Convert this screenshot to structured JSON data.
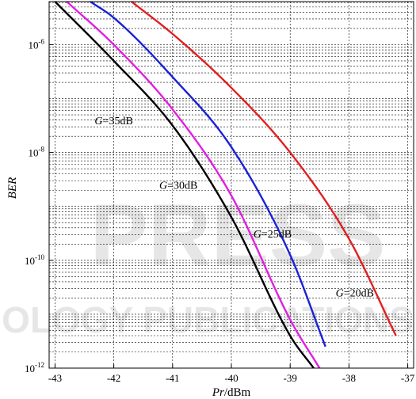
{
  "chart_data": {
    "type": "line",
    "xlabel": {
      "italic": "Pr",
      "rest": "/dBm"
    },
    "ylabel": "BER",
    "xlim": [
      -43.1,
      -36.9
    ],
    "ylim_log10": [
      -12,
      -5.2
    ],
    "yscale": "log",
    "x_ticks": [
      -43,
      -42,
      -41,
      -40,
      -39,
      -38,
      -37
    ],
    "x_tick_labels": [
      "-43",
      "-42",
      "-41",
      "-40",
      "-39",
      "-38",
      "-37"
    ],
    "y_ticks": [
      {
        "base": "10",
        "exp": "-6",
        "log": -6
      },
      {
        "base": "10",
        "exp": "-8",
        "log": -8
      },
      {
        "base": "10",
        "exp": "-10",
        "log": -10
      },
      {
        "base": "10",
        "exp": "-12",
        "log": -12
      }
    ],
    "grid": true,
    "series": [
      {
        "color": "#e02020",
        "x": [
          -41.7,
          -41.0,
          -40.0,
          -39.0,
          -38.0,
          -37.2
        ],
        "log10_ber": [
          -5.2,
          -5.8,
          -6.8,
          -8.0,
          -9.6,
          -11.4
        ]
      },
      {
        "color": "#1a22d8",
        "x": [
          -42.4,
          -42.0,
          -41.0,
          -40.0,
          -39.0,
          -38.4
        ],
        "log10_ber": [
          -5.2,
          -5.5,
          -6.6,
          -7.9,
          -9.9,
          -11.6
        ]
      },
      {
        "color": "#e020e0",
        "x": [
          -42.8,
          -42.0,
          -41.0,
          -40.0,
          -39.0,
          -38.5
        ],
        "log10_ber": [
          -5.2,
          -6.0,
          -7.2,
          -8.8,
          -11.1,
          -12.0
        ]
      },
      {
        "color": "#000000",
        "x": [
          -43.0,
          -42.0,
          -41.0,
          -40.0,
          -39.0,
          -38.6
        ],
        "log10_ber": [
          -5.2,
          -6.3,
          -7.5,
          -9.2,
          -11.4,
          -12.0
        ]
      }
    ],
    "annotations": [
      {
        "g": "G",
        "text": "=35dB",
        "x": -42.0,
        "log10_ber": -7.4
      },
      {
        "g": "G",
        "text": "=30dB",
        "x": -40.9,
        "log10_ber": -8.6
      },
      {
        "g": "G",
        "text": "=25dB",
        "x": -39.3,
        "log10_ber": -9.5
      },
      {
        "g": "G",
        "text": "=20dB",
        "x": -37.9,
        "log10_ber": -10.6
      }
    ],
    "watermark": {
      "line1": "PRESS",
      "line2": "OLOGY PUBLICATIONS"
    }
  }
}
